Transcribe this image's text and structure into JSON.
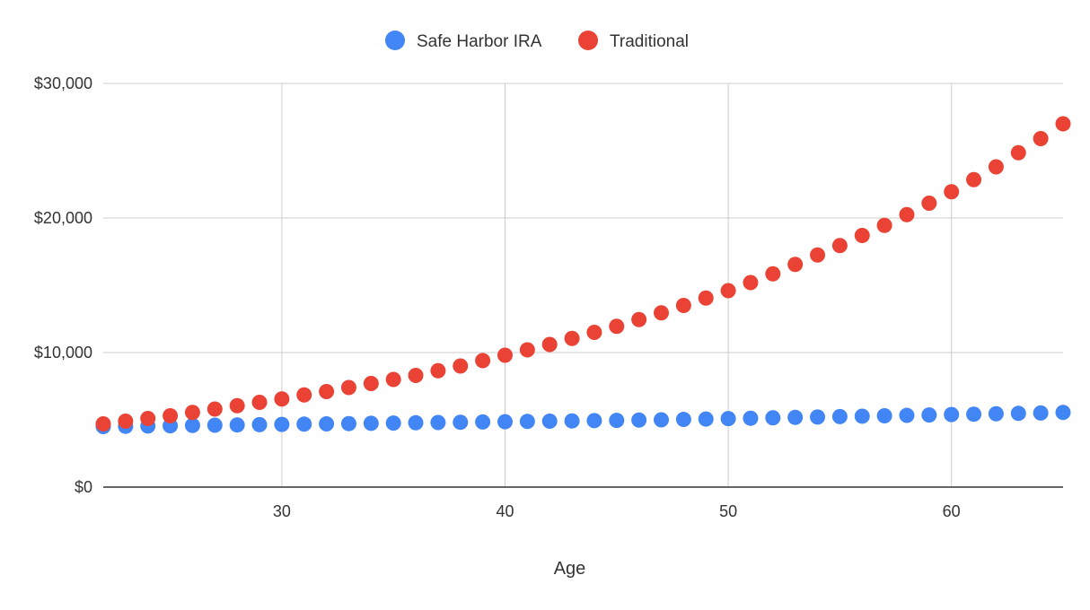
{
  "chart_data": {
    "type": "scatter",
    "title": "",
    "xlabel": "Age",
    "ylabel": "",
    "xlim": [
      22,
      65
    ],
    "ylim": [
      0,
      30000
    ],
    "xticks": [
      30,
      40,
      50,
      60
    ],
    "yticks": [
      0,
      10000,
      20000,
      30000
    ],
    "ytick_labels": [
      "$0",
      "$10,000",
      "$20,000",
      "$30,000"
    ],
    "grid": true,
    "legend_position": "top-center",
    "x": [
      22,
      23,
      24,
      25,
      26,
      27,
      28,
      29,
      30,
      31,
      32,
      33,
      34,
      35,
      36,
      37,
      38,
      39,
      40,
      41,
      42,
      43,
      44,
      45,
      46,
      47,
      48,
      49,
      50,
      51,
      52,
      53,
      54,
      55,
      56,
      57,
      58,
      59,
      60,
      61,
      62,
      63,
      64,
      65
    ],
    "series": [
      {
        "name": "Safe Harbor IRA",
        "color": "#4285f4",
        "values": [
          4500,
          4520,
          4540,
          4560,
          4580,
          4600,
          4620,
          4640,
          4660,
          4680,
          4700,
          4720,
          4740,
          4760,
          4780,
          4800,
          4820,
          4840,
          4860,
          4880,
          4900,
          4920,
          4940,
          4960,
          4980,
          5000,
          5030,
          5060,
          5090,
          5120,
          5150,
          5180,
          5210,
          5240,
          5270,
          5300,
          5330,
          5360,
          5390,
          5420,
          5450,
          5480,
          5510,
          5550
        ]
      },
      {
        "name": "Traditional",
        "color": "#ea4335",
        "values": [
          4700,
          4900,
          5100,
          5300,
          5550,
          5800,
          6050,
          6300,
          6550,
          6850,
          7100,
          7400,
          7700,
          8000,
          8300,
          8650,
          9000,
          9400,
          9800,
          10200,
          10600,
          11050,
          11500,
          11950,
          12450,
          12950,
          13500,
          14050,
          14600,
          15200,
          15850,
          16550,
          17250,
          17950,
          18700,
          19450,
          20250,
          21100,
          21950,
          22850,
          23800,
          24850,
          25900,
          27000
        ]
      }
    ]
  }
}
